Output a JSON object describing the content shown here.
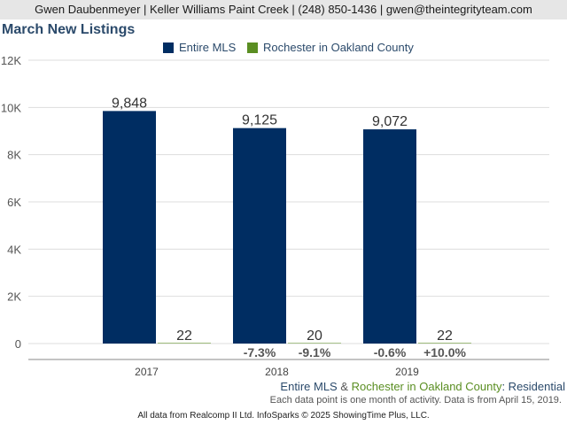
{
  "header": {
    "text": "Gwen Daubenmeyer | Keller Williams Paint Creek | (248) 850-1436 | gwen@theintegrityteam.com"
  },
  "subtitle": {
    "series1": "Entire MLS",
    "amp": " & ",
    "series2": "Rochester in Oakland County",
    "suffix": ": Residential"
  },
  "note": "Each data point is one month of activity. Data is from April 15, 2019.",
  "footer": "All data from Realcomp II Ltd. InfoSparks © 2025 ShowingTime Plus, LLC.",
  "colors": {
    "entire": "#002d62",
    "rochester": "#5a8e22",
    "grid": "#dddddd"
  },
  "chart_data": {
    "type": "bar",
    "title": "March New Listings",
    "categories": [
      "2017",
      "2018",
      "2019"
    ],
    "ylim": [
      0,
      12000
    ],
    "yticks": [
      {
        "value": 0,
        "label": "0"
      },
      {
        "value": 2000,
        "label": "2K"
      },
      {
        "value": 4000,
        "label": "4K"
      },
      {
        "value": 6000,
        "label": "6K"
      },
      {
        "value": 8000,
        "label": "8K"
      },
      {
        "value": 10000,
        "label": "10K"
      },
      {
        "value": 12000,
        "label": "12K"
      }
    ],
    "series": [
      {
        "name": "Entire MLS",
        "values": [
          9848,
          9125,
          9072
        ],
        "labels": [
          "9,848",
          "9,125",
          "9,072"
        ],
        "changes": [
          "",
          "-7.3%",
          "-0.6%"
        ]
      },
      {
        "name": "Rochester in Oakland County",
        "values": [
          22,
          20,
          22
        ],
        "labels": [
          "22",
          "20",
          "22"
        ],
        "changes": [
          "",
          "-9.1%",
          "+10.0%"
        ]
      }
    ]
  }
}
